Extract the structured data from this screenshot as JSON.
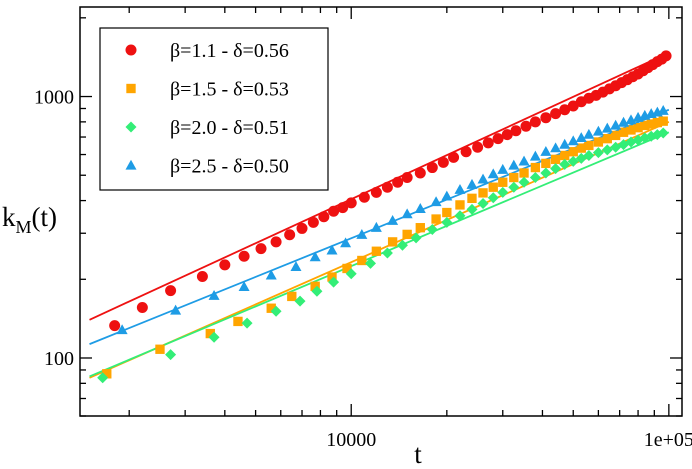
{
  "chart_data": {
    "type": "scatter",
    "xscale": "log",
    "yscale": "log",
    "xlim": [
      1400,
      110000
    ],
    "ylim": [
      60,
      2200
    ],
    "xticks": [
      {
        "value": 10000,
        "label": "10000"
      },
      {
        "value": 100000,
        "label": "1e+05"
      }
    ],
    "yticks": [
      {
        "value": 100,
        "label": "100"
      },
      {
        "value": 1000,
        "label": "1000"
      }
    ],
    "xlabel": "t",
    "ylabel": {
      "main": "k",
      "sub": "M",
      "rest": "(t)"
    },
    "grid": false,
    "legend": "top-left",
    "series": [
      {
        "name": "β=1.1 - δ=0.56",
        "color": "#ee1111",
        "marker": "circle",
        "fit": {
          "x": [
            1500,
            100000
          ],
          "y": [
            140,
            1470
          ]
        },
        "points": [
          {
            "x": 1800,
            "y": 133
          },
          {
            "x": 2200,
            "y": 156
          },
          {
            "x": 2700,
            "y": 181
          },
          {
            "x": 3400,
            "y": 205
          },
          {
            "x": 4000,
            "y": 227
          },
          {
            "x": 4600,
            "y": 245
          },
          {
            "x": 5200,
            "y": 262
          },
          {
            "x": 5800,
            "y": 278
          },
          {
            "x": 6400,
            "y": 296
          },
          {
            "x": 7000,
            "y": 313
          },
          {
            "x": 7600,
            "y": 330
          },
          {
            "x": 8200,
            "y": 347
          },
          {
            "x": 8800,
            "y": 364
          },
          {
            "x": 9400,
            "y": 376
          },
          {
            "x": 10000,
            "y": 392
          },
          {
            "x": 11000,
            "y": 412
          },
          {
            "x": 12000,
            "y": 430
          },
          {
            "x": 13000,
            "y": 450
          },
          {
            "x": 14000,
            "y": 470
          },
          {
            "x": 15000,
            "y": 490
          },
          {
            "x": 16500,
            "y": 510
          },
          {
            "x": 18000,
            "y": 535
          },
          {
            "x": 19500,
            "y": 560
          },
          {
            "x": 21000,
            "y": 585
          },
          {
            "x": 23000,
            "y": 615
          },
          {
            "x": 25000,
            "y": 640
          },
          {
            "x": 27000,
            "y": 665
          },
          {
            "x": 29000,
            "y": 690
          },
          {
            "x": 31000,
            "y": 715
          },
          {
            "x": 33000,
            "y": 740
          },
          {
            "x": 35500,
            "y": 770
          },
          {
            "x": 38000,
            "y": 800
          },
          {
            "x": 41000,
            "y": 830
          },
          {
            "x": 44000,
            "y": 860
          },
          {
            "x": 47000,
            "y": 890
          },
          {
            "x": 50000,
            "y": 920
          },
          {
            "x": 53000,
            "y": 955
          },
          {
            "x": 56000,
            "y": 985
          },
          {
            "x": 59000,
            "y": 1010
          },
          {
            "x": 62000,
            "y": 1040
          },
          {
            "x": 65000,
            "y": 1070
          },
          {
            "x": 68000,
            "y": 1100
          },
          {
            "x": 71000,
            "y": 1130
          },
          {
            "x": 74000,
            "y": 1160
          },
          {
            "x": 77000,
            "y": 1190
          },
          {
            "x": 80000,
            "y": 1220
          },
          {
            "x": 83000,
            "y": 1255
          },
          {
            "x": 86000,
            "y": 1290
          },
          {
            "x": 89000,
            "y": 1325
          },
          {
            "x": 92000,
            "y": 1360
          },
          {
            "x": 95000,
            "y": 1390
          },
          {
            "x": 98000,
            "y": 1430
          }
        ]
      },
      {
        "name": "β=1.5 - δ=0.53",
        "color": "#ffa500",
        "marker": "square",
        "fit": {
          "x": [
            1500,
            100000
          ],
          "y": [
            84,
            800
          ]
        },
        "points": [
          {
            "x": 1700,
            "y": 87
          },
          {
            "x": 2500,
            "y": 108
          },
          {
            "x": 3600,
            "y": 124
          },
          {
            "x": 4400,
            "y": 138
          },
          {
            "x": 5600,
            "y": 155
          },
          {
            "x": 6500,
            "y": 172
          },
          {
            "x": 7700,
            "y": 188
          },
          {
            "x": 8700,
            "y": 204
          },
          {
            "x": 9700,
            "y": 220
          },
          {
            "x": 10800,
            "y": 236
          },
          {
            "x": 12000,
            "y": 256
          },
          {
            "x": 13500,
            "y": 278
          },
          {
            "x": 15000,
            "y": 297
          },
          {
            "x": 16500,
            "y": 315
          },
          {
            "x": 18500,
            "y": 340
          },
          {
            "x": 20000,
            "y": 360
          },
          {
            "x": 22000,
            "y": 385
          },
          {
            "x": 24000,
            "y": 408
          },
          {
            "x": 26000,
            "y": 428
          },
          {
            "x": 28000,
            "y": 450
          },
          {
            "x": 30000,
            "y": 470
          },
          {
            "x": 32500,
            "y": 490
          },
          {
            "x": 35000,
            "y": 510
          },
          {
            "x": 38000,
            "y": 535
          },
          {
            "x": 41000,
            "y": 555
          },
          {
            "x": 44000,
            "y": 575
          },
          {
            "x": 47000,
            "y": 595
          },
          {
            "x": 50000,
            "y": 615
          },
          {
            "x": 53000,
            "y": 635
          },
          {
            "x": 56000,
            "y": 650
          },
          {
            "x": 60000,
            "y": 670
          },
          {
            "x": 64000,
            "y": 690
          },
          {
            "x": 68000,
            "y": 710
          },
          {
            "x": 72000,
            "y": 730
          },
          {
            "x": 76000,
            "y": 745
          },
          {
            "x": 80000,
            "y": 760
          },
          {
            "x": 84000,
            "y": 775
          },
          {
            "x": 88000,
            "y": 785
          },
          {
            "x": 92000,
            "y": 795
          },
          {
            "x": 96000,
            "y": 805
          }
        ]
      },
      {
        "name": "β=2.0 - δ=0.51",
        "color": "#33ee77",
        "marker": "diamond",
        "fit": {
          "x": [
            1500,
            100000
          ],
          "y": [
            85,
            730
          ]
        },
        "points": [
          {
            "x": 1650,
            "y": 84
          },
          {
            "x": 2700,
            "y": 103
          },
          {
            "x": 3700,
            "y": 120
          },
          {
            "x": 4700,
            "y": 136
          },
          {
            "x": 5800,
            "y": 151
          },
          {
            "x": 6900,
            "y": 165
          },
          {
            "x": 7800,
            "y": 180
          },
          {
            "x": 8800,
            "y": 195
          },
          {
            "x": 10000,
            "y": 210
          },
          {
            "x": 11500,
            "y": 230
          },
          {
            "x": 13000,
            "y": 252
          },
          {
            "x": 14500,
            "y": 270
          },
          {
            "x": 16000,
            "y": 288
          },
          {
            "x": 18000,
            "y": 310
          },
          {
            "x": 20000,
            "y": 330
          },
          {
            "x": 22000,
            "y": 350
          },
          {
            "x": 24000,
            "y": 370
          },
          {
            "x": 26000,
            "y": 390
          },
          {
            "x": 28000,
            "y": 410
          },
          {
            "x": 30000,
            "y": 430
          },
          {
            "x": 32500,
            "y": 450
          },
          {
            "x": 35000,
            "y": 470
          },
          {
            "x": 38000,
            "y": 490
          },
          {
            "x": 41000,
            "y": 510
          },
          {
            "x": 44000,
            "y": 530
          },
          {
            "x": 47000,
            "y": 550
          },
          {
            "x": 50000,
            "y": 565
          },
          {
            "x": 53000,
            "y": 580
          },
          {
            "x": 56000,
            "y": 595
          },
          {
            "x": 60000,
            "y": 610
          },
          {
            "x": 64000,
            "y": 625
          },
          {
            "x": 68000,
            "y": 640
          },
          {
            "x": 72000,
            "y": 655
          },
          {
            "x": 76000,
            "y": 670
          },
          {
            "x": 80000,
            "y": 682
          },
          {
            "x": 84000,
            "y": 695
          },
          {
            "x": 88000,
            "y": 705
          },
          {
            "x": 92000,
            "y": 715
          },
          {
            "x": 96000,
            "y": 725
          }
        ]
      },
      {
        "name": "β=2.5 - δ=0.50",
        "color": "#1e9ce5",
        "marker": "triangle",
        "fit": {
          "x": [
            1500,
            100000
          ],
          "y": [
            113,
            890
          ]
        },
        "points": [
          {
            "x": 1900,
            "y": 128
          },
          {
            "x": 2800,
            "y": 152
          },
          {
            "x": 3700,
            "y": 173
          },
          {
            "x": 4600,
            "y": 187
          },
          {
            "x": 5600,
            "y": 207
          },
          {
            "x": 6700,
            "y": 223
          },
          {
            "x": 7700,
            "y": 243
          },
          {
            "x": 8700,
            "y": 258
          },
          {
            "x": 9600,
            "y": 275
          },
          {
            "x": 10800,
            "y": 296
          },
          {
            "x": 12000,
            "y": 315
          },
          {
            "x": 13500,
            "y": 335
          },
          {
            "x": 15000,
            "y": 355
          },
          {
            "x": 16500,
            "y": 372
          },
          {
            "x": 18500,
            "y": 395
          },
          {
            "x": 20000,
            "y": 415
          },
          {
            "x": 22000,
            "y": 440
          },
          {
            "x": 24000,
            "y": 460
          },
          {
            "x": 26000,
            "y": 482
          },
          {
            "x": 28000,
            "y": 505
          },
          {
            "x": 30000,
            "y": 525
          },
          {
            "x": 32500,
            "y": 545
          },
          {
            "x": 35000,
            "y": 565
          },
          {
            "x": 38000,
            "y": 590
          },
          {
            "x": 41000,
            "y": 615
          },
          {
            "x": 44000,
            "y": 635
          },
          {
            "x": 47000,
            "y": 655
          },
          {
            "x": 50000,
            "y": 675
          },
          {
            "x": 53000,
            "y": 695
          },
          {
            "x": 56000,
            "y": 715
          },
          {
            "x": 60000,
            "y": 735
          },
          {
            "x": 64000,
            "y": 755
          },
          {
            "x": 68000,
            "y": 775
          },
          {
            "x": 72000,
            "y": 795
          },
          {
            "x": 76000,
            "y": 812
          },
          {
            "x": 80000,
            "y": 830
          },
          {
            "x": 84000,
            "y": 845
          },
          {
            "x": 88000,
            "y": 858
          },
          {
            "x": 92000,
            "y": 870
          },
          {
            "x": 96000,
            "y": 882
          }
        ]
      }
    ]
  }
}
